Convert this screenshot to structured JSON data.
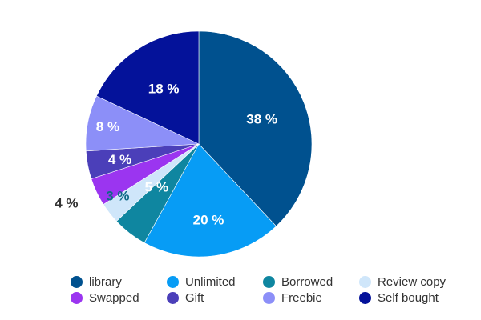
{
  "chart_data": {
    "type": "pie",
    "title": "",
    "slices": [
      {
        "name": "library",
        "value": 38,
        "label": "38 %",
        "color": "#00518f"
      },
      {
        "name": "Unlimited",
        "value": 20,
        "label": "20 %",
        "color": "#079cf5"
      },
      {
        "name": "Borrowed",
        "value": 5,
        "label": "5 %",
        "color": "#0f86a0"
      },
      {
        "name": "Review copy",
        "value": 3,
        "label": "3 %",
        "color": "#cfe6fa"
      },
      {
        "name": "Swapped",
        "value": 4,
        "label": "4 %",
        "color": "#9b35f0"
      },
      {
        "name": "Gift",
        "value": 4,
        "label": "4 %",
        "color": "#4b3fb9"
      },
      {
        "name": "Freebie",
        "value": 8,
        "label": "8 %",
        "color": "#8c8ff8"
      },
      {
        "name": "Self bought",
        "value": 18,
        "label": "18 %",
        "color": "#04129a"
      }
    ],
    "legend_position": "bottom",
    "start_angle": "12 o'clock",
    "direction": "clockwise"
  }
}
